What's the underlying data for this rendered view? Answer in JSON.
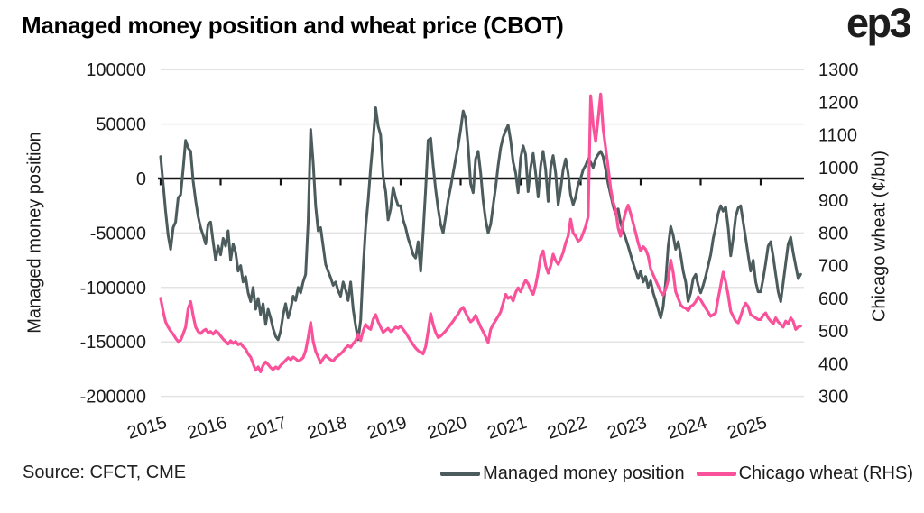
{
  "header": {
    "title": "Managed money position and wheat price (CBOT)",
    "logo": "ep3"
  },
  "footer": {
    "source": "Source: CFCT, CME"
  },
  "chart_data": {
    "type": "line",
    "title": "Managed money position and wheat price (CBOT)",
    "grid": "horizontal-only",
    "legend_position": "bottom",
    "colors": {
      "grid": "#E3E3E3",
      "zero_line": "#141414",
      "managed_money": "#4C5B5C",
      "wheat": "#F9529B"
    },
    "left_axis": {
      "label": "Managed money position",
      "ticks": [
        "100000",
        "50000",
        "0",
        "-50000",
        "-100000",
        "-150000",
        "-200000"
      ],
      "range": [
        -200000,
        100000
      ]
    },
    "right_axis": {
      "label": "Chicago wheat (¢/bu)",
      "ticks": [
        "1300",
        "1200",
        "1100",
        "1000",
        "900",
        "800",
        "700",
        "600",
        "500",
        "400",
        "300"
      ],
      "range": [
        300,
        1300
      ]
    },
    "x_axis": {
      "ticks": [
        "2015",
        "2016",
        "2017",
        "2018",
        "2019",
        "2020",
        "2021",
        "2022",
        "2023",
        "2024",
        "2025"
      ],
      "start_year": 2015,
      "end_x": 2025.67
    },
    "legend": [
      {
        "label": "Managed money position",
        "color": "#4C5B5C"
      },
      {
        "label": "Chicago wheat (RHS)",
        "color": "#F9529B"
      }
    ],
    "series": [
      {
        "name": "Managed money position",
        "axis": "left",
        "color": "#4C5B5C",
        "width": 3,
        "start_year": 2015,
        "points_per_year": 24,
        "values": [
          20000,
          -5000,
          -30000,
          -52000,
          -65000,
          -45000,
          -40000,
          -18000,
          -15000,
          8000,
          35000,
          28000,
          25000,
          -2000,
          -20000,
          -35000,
          -45000,
          -52000,
          -60000,
          -42000,
          -40000,
          -58000,
          -75000,
          -62000,
          -70000,
          -55000,
          -62000,
          -48000,
          -75000,
          -60000,
          -68000,
          -85000,
          -80000,
          -95000,
          -90000,
          -105000,
          -113000,
          -100000,
          -120000,
          -110000,
          -125000,
          -115000,
          -134000,
          -120000,
          -128000,
          -138000,
          -145000,
          -148000,
          -140000,
          -125000,
          -115000,
          -128000,
          -120000,
          -108000,
          -112000,
          -100000,
          -105000,
          -95000,
          -88000,
          -40000,
          45000,
          15000,
          -25000,
          -48000,
          -45000,
          -62000,
          -79000,
          -85000,
          -91000,
          -98000,
          -95000,
          -103000,
          -108000,
          -95000,
          -102000,
          -112000,
          -95000,
          -120000,
          -135000,
          -148000,
          -130000,
          -83000,
          -45000,
          -20000,
          10000,
          35000,
          65000,
          48000,
          40000,
          2000,
          -12000,
          -38000,
          -28000,
          -8000,
          -18000,
          -25000,
          -25000,
          -38000,
          -45000,
          -55000,
          -62000,
          -70000,
          -73000,
          -58000,
          -85000,
          -50000,
          -10000,
          35000,
          37000,
          12000,
          -10000,
          -28000,
          -42000,
          -50000,
          -35000,
          -20000,
          -8000,
          5000,
          18000,
          30000,
          45000,
          62000,
          55000,
          30000,
          -5000,
          -13000,
          18000,
          25000,
          5000,
          -20000,
          -38000,
          -50000,
          -42000,
          -25000,
          -8000,
          12000,
          28000,
          38000,
          44000,
          49000,
          35000,
          15000,
          5000,
          -13000,
          19000,
          30000,
          22000,
          -12000,
          10000,
          23000,
          5000,
          -17000,
          12000,
          25000,
          8000,
          -21000,
          10000,
          21000,
          5000,
          -24000,
          -10000,
          8000,
          18000,
          5000,
          -15000,
          -24000,
          -17000,
          -5000,
          0,
          8000,
          12000,
          18000,
          15000,
          10000,
          18000,
          22000,
          25000,
          20000,
          8000,
          -5000,
          -15000,
          -25000,
          -33000,
          -28000,
          -41000,
          -48000,
          -55000,
          -62000,
          -70000,
          -78000,
          -85000,
          -92000,
          -85000,
          -95000,
          -90000,
          -100000,
          -94000,
          -105000,
          -112000,
          -120000,
          -128000,
          -118000,
          -95000,
          -62000,
          -44000,
          -52000,
          -65000,
          -58000,
          -70000,
          -85000,
          -95000,
          -113000,
          -105000,
          -92000,
          -88000,
          -98000,
          -105000,
          -98000,
          -90000,
          -80000,
          -70000,
          -55000,
          -45000,
          -32000,
          -25000,
          -30000,
          -26000,
          -45000,
          -71000,
          -55000,
          -35000,
          -27000,
          -25000,
          -40000,
          -55000,
          -70000,
          -85000,
          -75000,
          -95000,
          -104000,
          -104000,
          -92000,
          -78000,
          -62000,
          -58000,
          -72000,
          -88000,
          -104000,
          -113000,
          -96000,
          -78000,
          -60000,
          -54000,
          -68000,
          -80000,
          -92000,
          -88000
        ]
      },
      {
        "name": "Chicago wheat (RHS)",
        "axis": "right",
        "color": "#F9529B",
        "width": 3.2,
        "start_year": 2015,
        "points_per_year": 24,
        "values": [
          600,
          560,
          528,
          512,
          500,
          490,
          478,
          468,
          472,
          490,
          512,
          568,
          590,
          548,
          512,
          498,
          492,
          500,
          505,
          495,
          498,
          490,
          500,
          495,
          485,
          475,
          468,
          460,
          470,
          462,
          468,
          458,
          462,
          452,
          445,
          430,
          420,
          400,
          380,
          390,
          375,
          395,
          405,
          398,
          388,
          382,
          390,
          385,
          395,
          402,
          410,
          418,
          412,
          420,
          415,
          408,
          412,
          418,
          440,
          480,
          526,
          470,
          438,
          420,
          402,
          415,
          425,
          418,
          412,
          408,
          418,
          424,
          430,
          438,
          448,
          455,
          450,
          462,
          470,
          490,
          471,
          500,
          520,
          510,
          505,
          535,
          550,
          528,
          512,
          496,
          502,
          508,
          498,
          505,
          512,
          508,
          515,
          505,
          495,
          482,
          470,
          458,
          448,
          440,
          436,
          430,
          452,
          500,
          553,
          520,
          495,
          480,
          484,
          492,
          500,
          510,
          520,
          530,
          542,
          552,
          565,
          572,
          556,
          540,
          528,
          535,
          548,
          530,
          512,
          498,
          482,
          465,
          505,
          520,
          532,
          545,
          558,
          585,
          612,
          600,
          605,
          592,
          618,
          632,
          620,
          640,
          655,
          645,
          625,
          612,
          640,
          680,
          730,
          745,
          700,
          677,
          700,
          735,
          715,
          704,
          720,
          740,
          770,
          790,
          842,
          800,
          790,
          775,
          780,
          800,
          820,
          850,
          1220,
          1130,
          1080,
          1150,
          1225,
          1120,
          1060,
          1000,
          935,
          895,
          870,
          815,
          790,
          835,
          865,
          885,
          860,
          830,
          800,
          770,
          745,
          758,
          750,
          730,
          690,
          672,
          655,
          638,
          620,
          610,
          628,
          655,
          717,
          680,
          620,
          600,
          580,
          572,
          570,
          562,
          575,
          580,
          590,
          605,
          595,
          582,
          570,
          558,
          545,
          550,
          555,
          600,
          640,
          680,
          650,
          610,
          560,
          545,
          530,
          525,
          545,
          570,
          585,
          575,
          550,
          545,
          540,
          535,
          535,
          548,
          555,
          540,
          530,
          522,
          540,
          528,
          520,
          512,
          530,
          522,
          540,
          530,
          505,
          512,
          515
        ]
      }
    ]
  }
}
